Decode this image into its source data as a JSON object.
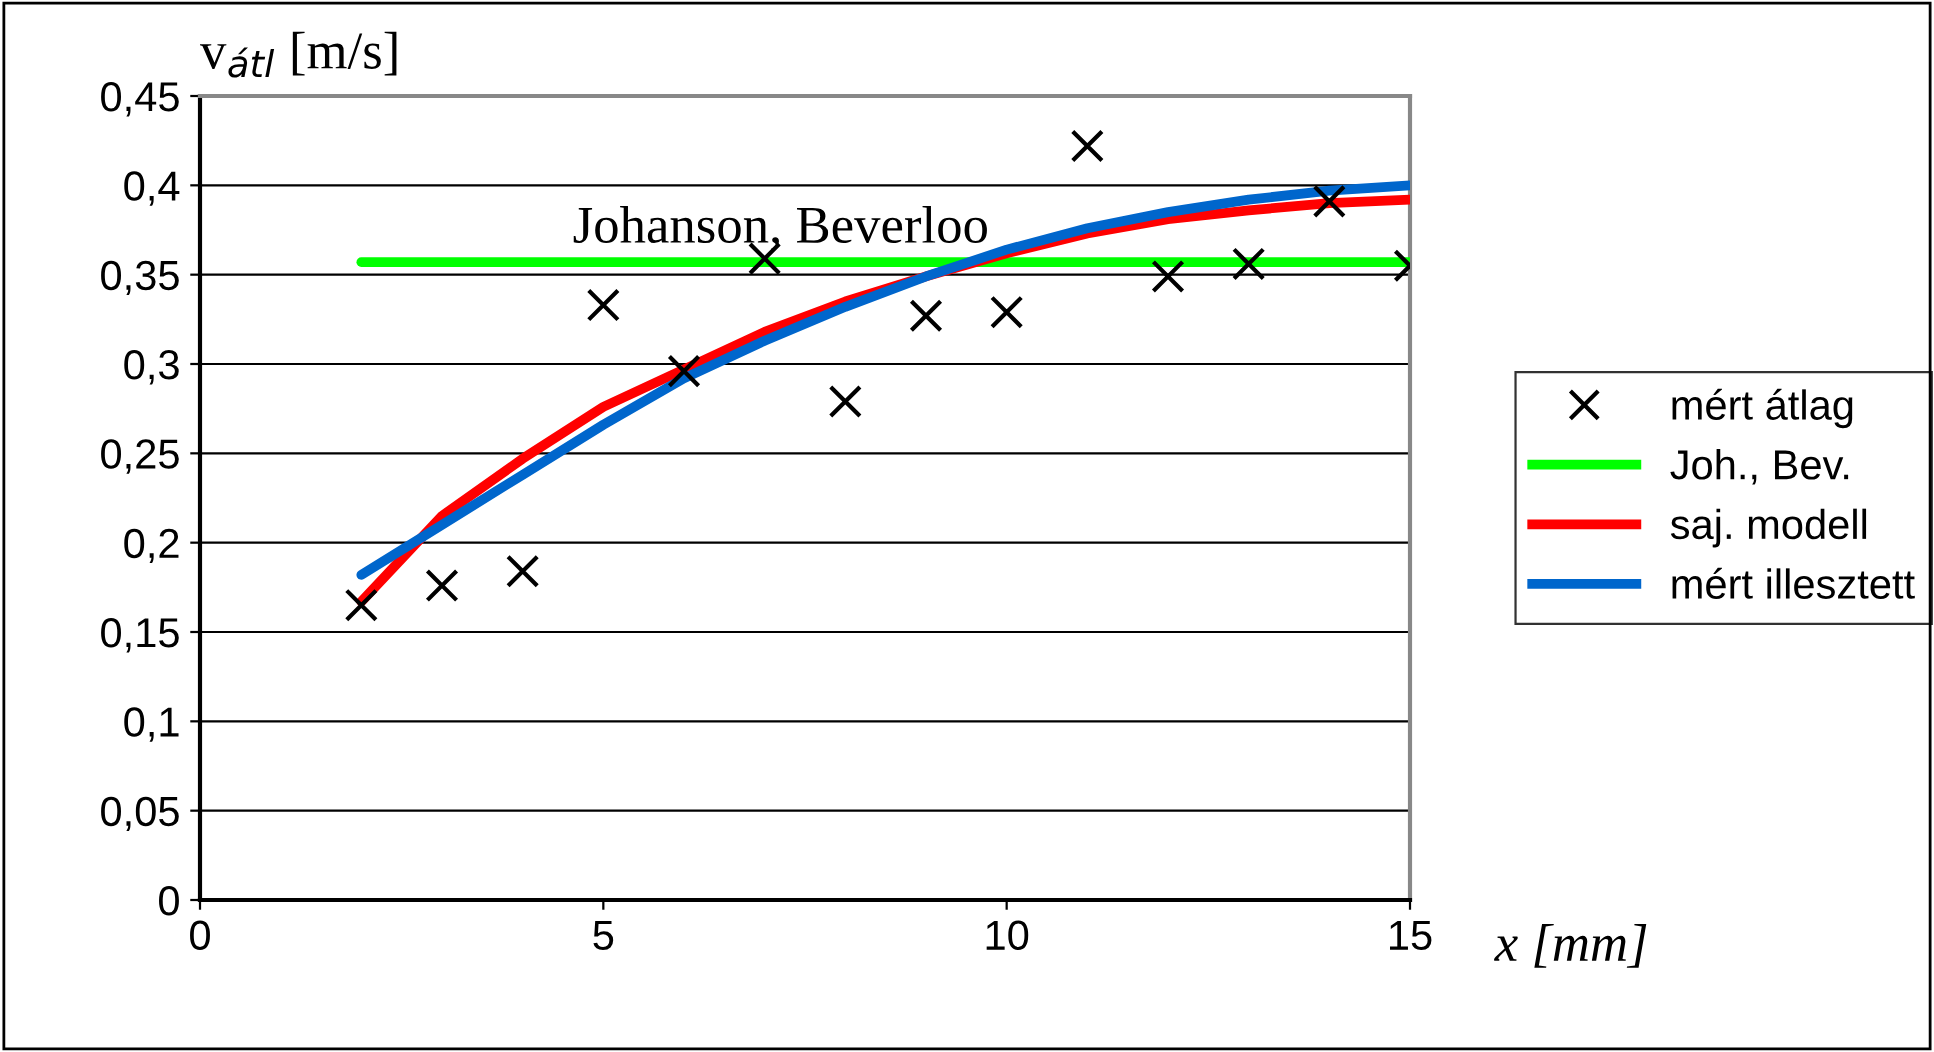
{
  "chart_data": {
    "type": "line",
    "ylabel": "v$_{átl}$ [m/s]",
    "xlabel": "x [mm]",
    "xlim": [
      0,
      15
    ],
    "xticks": [
      0,
      5,
      10,
      15
    ],
    "ylim": [
      0,
      0.45
    ],
    "yticks": [
      {
        "value": 0,
        "label": "0"
      },
      {
        "value": 0.05,
        "label": "0,05"
      },
      {
        "value": 0.1,
        "label": "0,1"
      },
      {
        "value": 0.15,
        "label": "0,15"
      },
      {
        "value": 0.2,
        "label": "0,2"
      },
      {
        "value": 0.25,
        "label": "0,25"
      },
      {
        "value": 0.3,
        "label": "0,3"
      },
      {
        "value": 0.35,
        "label": "0,35"
      },
      {
        "value": 0.4,
        "label": "0,4"
      },
      {
        "value": 0.45,
        "label": "0,45"
      }
    ],
    "grid": "y",
    "legend": "right",
    "annotations": [
      {
        "text": "Johanson, Beverloo",
        "x": 7.2,
        "y": 0.357
      }
    ],
    "series": [
      {
        "name": "mért átlag",
        "type": "scatter",
        "marker": "cross",
        "color": "#000000",
        "x": [
          2,
          3,
          4,
          5,
          6,
          7,
          8,
          9,
          10,
          11,
          12,
          13,
          14,
          15
        ],
        "values": [
          0.165,
          0.176,
          0.184,
          0.333,
          0.296,
          0.359,
          0.279,
          0.327,
          0.329,
          0.422,
          0.349,
          0.356,
          0.391,
          0.355
        ]
      },
      {
        "name": "Joh., Bev.",
        "color": "#00ff00",
        "x": [
          2,
          15
        ],
        "values": [
          0.357,
          0.357
        ]
      },
      {
        "name": "saj. modell",
        "color": "#ff0000",
        "x": [
          2,
          3,
          4,
          5,
          6,
          7,
          8,
          9,
          10,
          11,
          12,
          13,
          14,
          15
        ],
        "values": [
          0.167,
          0.215,
          0.247,
          0.276,
          0.297,
          0.318,
          0.335,
          0.349,
          0.362,
          0.373,
          0.381,
          0.386,
          0.39,
          0.392
        ]
      },
      {
        "name": "mért illesztett",
        "color": "#0066cc",
        "x": [
          2,
          3,
          4,
          5,
          6,
          7,
          8,
          9,
          10,
          11,
          12,
          13,
          14,
          15
        ],
        "values": [
          0.182,
          0.21,
          0.238,
          0.266,
          0.292,
          0.313,
          0.332,
          0.349,
          0.364,
          0.376,
          0.385,
          0.392,
          0.397,
          0.4
        ]
      }
    ]
  }
}
